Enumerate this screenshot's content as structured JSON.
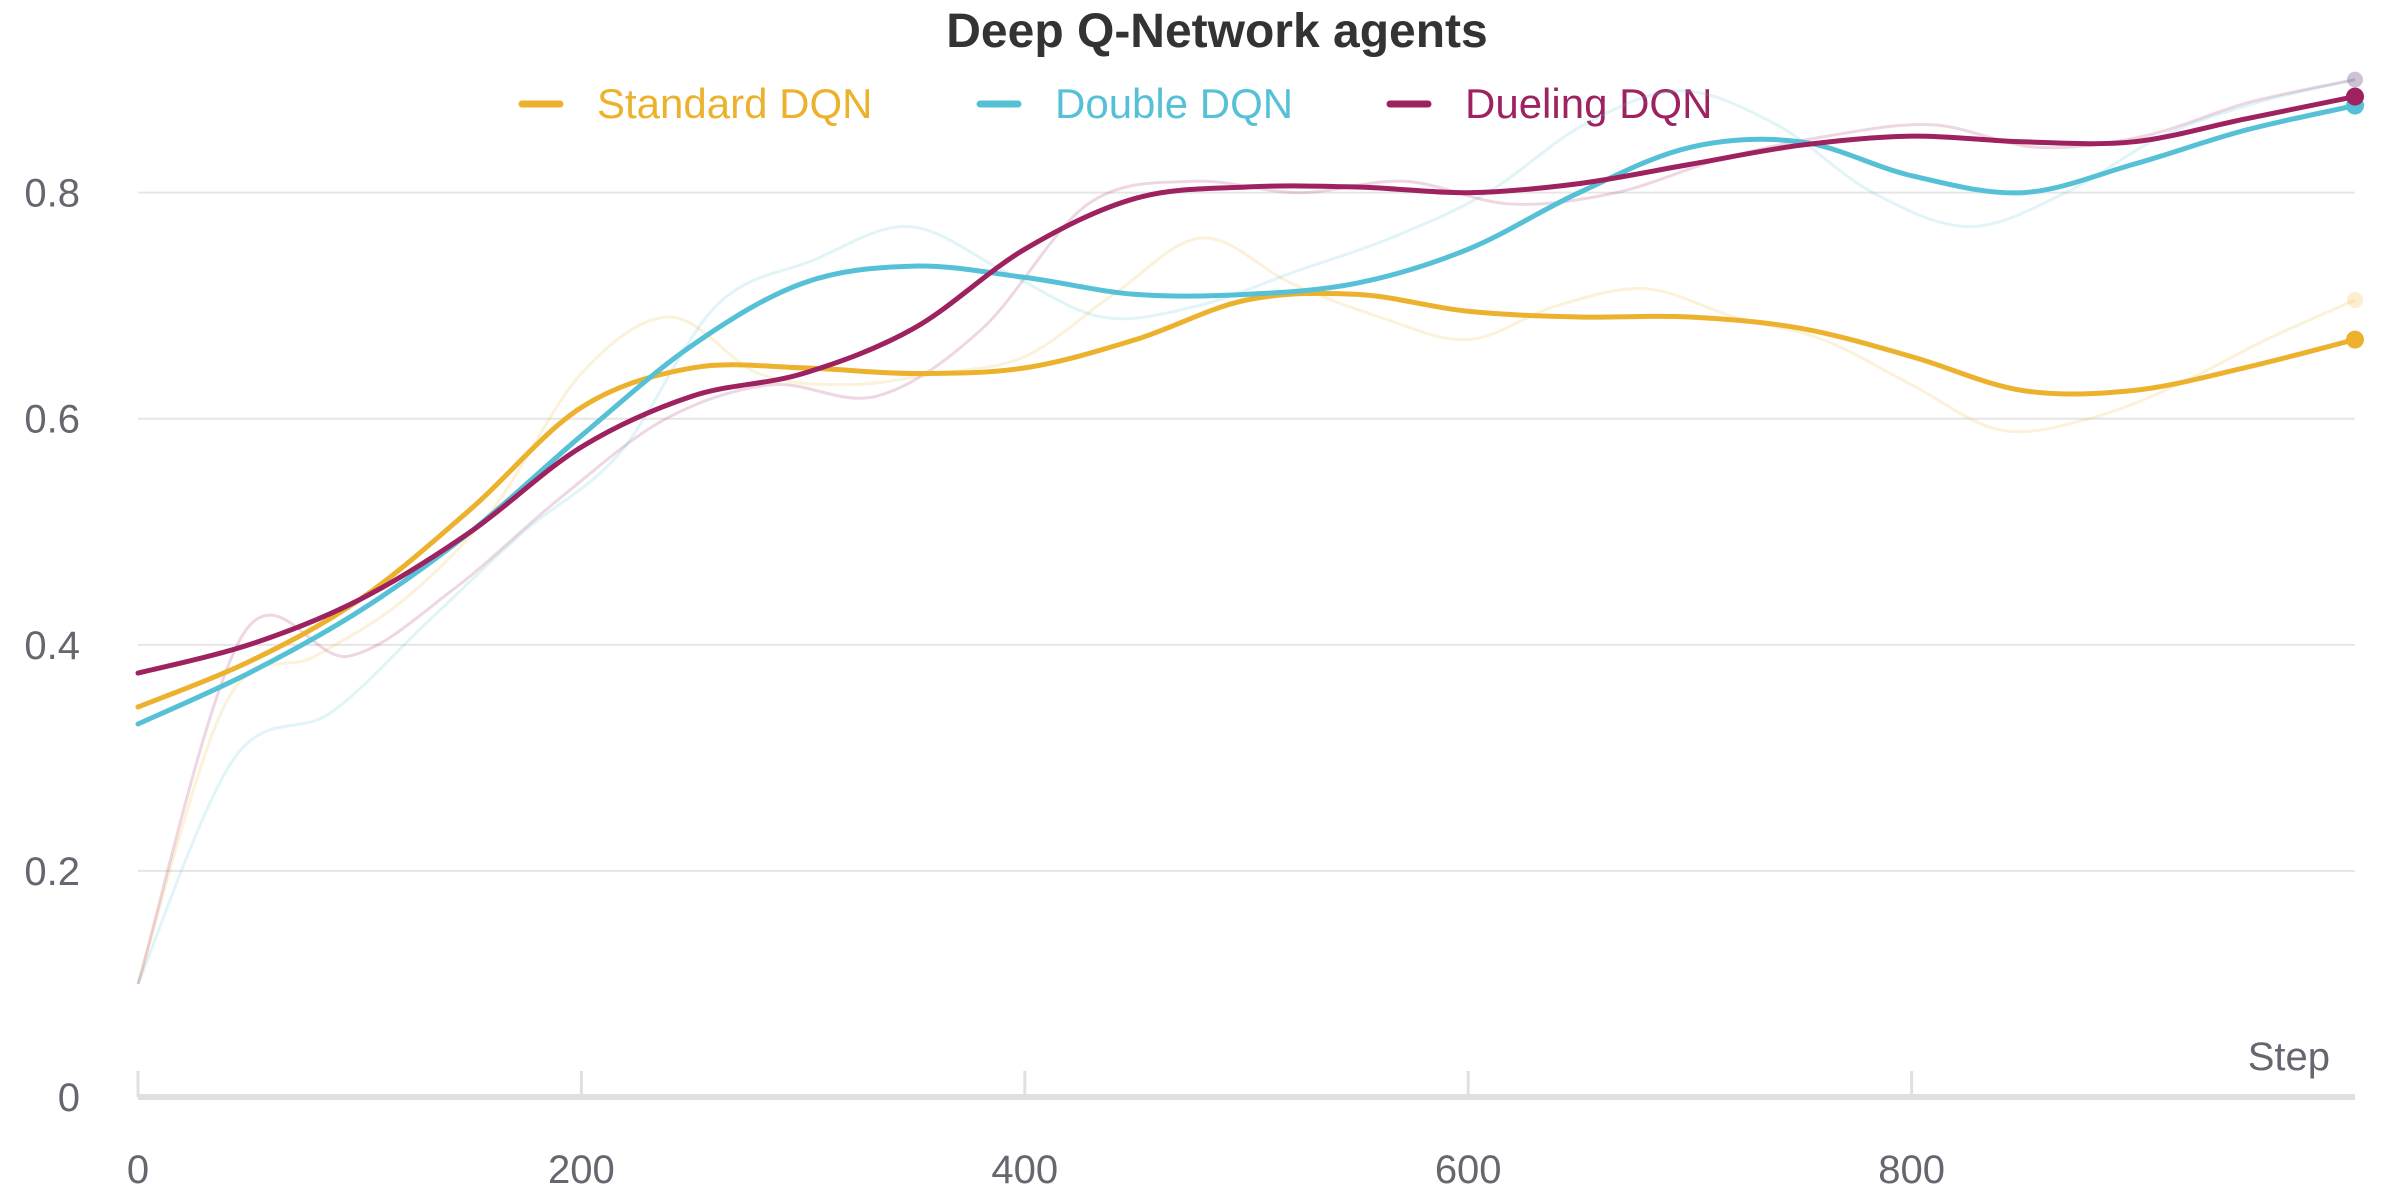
{
  "chart_data": {
    "type": "line",
    "title": "Deep Q-Network agents",
    "xlabel": "Step",
    "ylabel": "",
    "xlim": [
      0,
      1000
    ],
    "ylim": [
      0,
      0.92
    ],
    "x_ticks": [
      0,
      200,
      400,
      600,
      800
    ],
    "y_ticks": [
      0,
      0.2,
      0.4,
      0.6,
      0.8
    ],
    "x_tick_labels": [
      "0",
      "200",
      "400",
      "600",
      "800"
    ],
    "y_tick_labels": [
      "0",
      "0.2",
      "0.4",
      "0.6",
      "0.8"
    ],
    "grid": "horizontal",
    "legend_position": "top-center",
    "series": [
      {
        "name": "Standard DQN",
        "color": "#ECB22E",
        "x": [
          0,
          50,
          100,
          150,
          200,
          250,
          300,
          350,
          400,
          450,
          500,
          550,
          600,
          650,
          700,
          750,
          800,
          850,
          900,
          950,
          1000
        ],
        "smoothed": [
          0.345,
          0.385,
          0.44,
          0.52,
          0.61,
          0.645,
          0.645,
          0.64,
          0.645,
          0.67,
          0.705,
          0.71,
          0.695,
          0.69,
          0.69,
          0.68,
          0.655,
          0.625,
          0.625,
          0.645,
          0.67
        ],
        "raw": [
          0.1,
          0.35,
          0.39,
          0.44,
          0.52,
          0.64,
          0.69,
          0.64,
          0.63,
          0.64,
          0.655,
          0.71,
          0.76,
          0.72,
          0.69,
          0.67,
          0.7,
          0.715,
          0.69,
          0.67,
          0.63,
          0.59,
          0.6,
          0.63,
          0.67,
          0.705
        ]
      },
      {
        "name": "Double DQN",
        "color": "#56C1D6",
        "x": [
          0,
          50,
          100,
          150,
          200,
          250,
          300,
          350,
          400,
          450,
          500,
          550,
          600,
          650,
          700,
          750,
          800,
          850,
          900,
          950,
          1000
        ],
        "smoothed": [
          0.33,
          0.375,
          0.43,
          0.5,
          0.585,
          0.665,
          0.72,
          0.735,
          0.725,
          0.71,
          0.71,
          0.72,
          0.75,
          0.8,
          0.84,
          0.845,
          0.815,
          0.8,
          0.825,
          0.855,
          0.877
        ],
        "raw": [
          0.1,
          0.3,
          0.34,
          0.42,
          0.5,
          0.57,
          0.7,
          0.74,
          0.77,
          0.73,
          0.69,
          0.7,
          0.73,
          0.76,
          0.8,
          0.86,
          0.89,
          0.86,
          0.8,
          0.77,
          0.8,
          0.85,
          0.88,
          0.9
        ]
      },
      {
        "name": "Dueling DQN",
        "color": "#9E2160",
        "x": [
          0,
          50,
          100,
          150,
          200,
          250,
          300,
          350,
          400,
          450,
          500,
          550,
          600,
          650,
          700,
          750,
          800,
          850,
          900,
          950,
          1000
        ],
        "smoothed": [
          0.375,
          0.4,
          0.44,
          0.5,
          0.575,
          0.62,
          0.64,
          0.68,
          0.75,
          0.795,
          0.805,
          0.805,
          0.8,
          0.808,
          0.825,
          0.842,
          0.85,
          0.845,
          0.845,
          0.865,
          0.885
        ],
        "raw": [
          0.1,
          0.41,
          0.39,
          0.45,
          0.53,
          0.6,
          0.63,
          0.62,
          0.68,
          0.79,
          0.81,
          0.8,
          0.81,
          0.79,
          0.8,
          0.83,
          0.85,
          0.86,
          0.84,
          0.85,
          0.88,
          0.9
        ]
      }
    ]
  }
}
